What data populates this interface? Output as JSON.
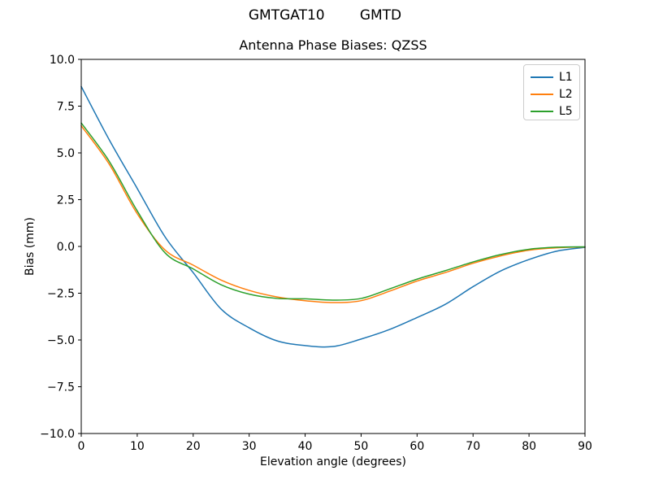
{
  "figure": {
    "suptitle": "GMTGAT10        GMTD",
    "background": "#ffffff"
  },
  "chart_data": {
    "type": "line",
    "title": "Antenna Phase Biases: QZSS",
    "xlabel": "Elevation angle (degrees)",
    "ylabel": "Bias (mm)",
    "xlim": [
      0,
      90
    ],
    "ylim": [
      -10,
      10
    ],
    "xticks": [
      0,
      10,
      20,
      30,
      40,
      50,
      60,
      70,
      80,
      90
    ],
    "yticks": [
      10.0,
      7.5,
      5.0,
      2.5,
      0.0,
      -2.5,
      -5.0,
      -7.5,
      -10.0
    ],
    "xtick_labels": [
      "0",
      "10",
      "20",
      "30",
      "40",
      "50",
      "60",
      "70",
      "80",
      "90"
    ],
    "ytick_labels": [
      "10.0",
      "7.5",
      "5.0",
      "2.5",
      "0.0",
      "−2.5",
      "−5.0",
      "−7.5",
      "−10.0"
    ],
    "grid": false,
    "legend_position": "upper right",
    "x": [
      0,
      5,
      10,
      15,
      20,
      25,
      30,
      35,
      40,
      45,
      50,
      55,
      60,
      65,
      70,
      75,
      80,
      85,
      90
    ],
    "series": [
      {
        "name": "L1",
        "color": "#1f77b4",
        "values": [
          8.55,
          5.7,
          3.1,
          0.5,
          -1.4,
          -3.35,
          -4.35,
          -5.05,
          -5.3,
          -5.35,
          -4.95,
          -4.45,
          -3.8,
          -3.1,
          -2.15,
          -1.3,
          -0.7,
          -0.25,
          -0.05
        ]
      },
      {
        "name": "L2",
        "color": "#ff7f0e",
        "values": [
          6.45,
          4.4,
          1.75,
          -0.2,
          -1.0,
          -1.8,
          -2.35,
          -2.7,
          -2.9,
          -3.0,
          -2.9,
          -2.4,
          -1.85,
          -1.4,
          -0.9,
          -0.5,
          -0.2,
          -0.07,
          -0.03
        ]
      },
      {
        "name": "L5",
        "color": "#2ca02c",
        "values": [
          6.6,
          4.55,
          1.9,
          -0.35,
          -1.2,
          -2.05,
          -2.55,
          -2.78,
          -2.8,
          -2.87,
          -2.78,
          -2.28,
          -1.75,
          -1.3,
          -0.83,
          -0.43,
          -0.15,
          -0.04,
          -0.02
        ]
      }
    ]
  }
}
